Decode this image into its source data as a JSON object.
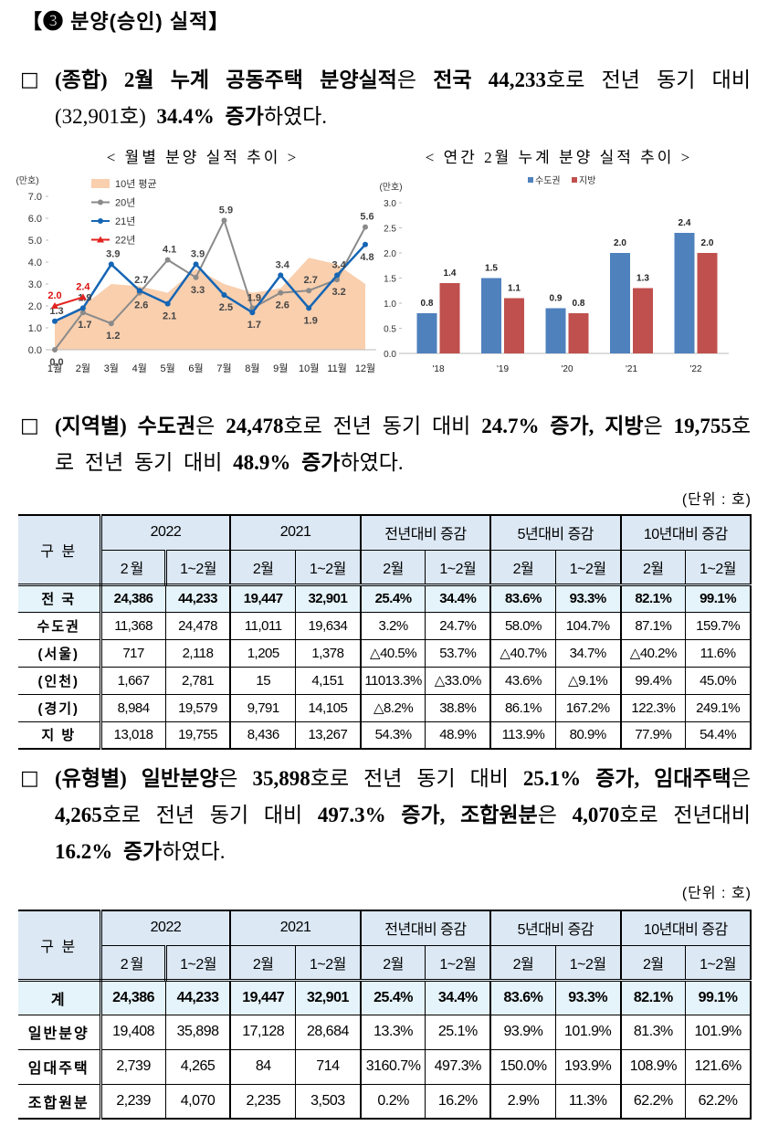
{
  "heading": "【❸ 분양(승인) 실적】",
  "paragraphs": [
    {
      "marker": "□",
      "segments": [
        {
          "t": "(종합) 2월 누계 공동주택 분양실적",
          "b": true
        },
        {
          "t": "은 ",
          "b": false
        },
        {
          "t": "전국 44,233",
          "b": true
        },
        {
          "t": "호로 전년 동기 대비 (32,901호) ",
          "b": false
        },
        {
          "t": "34.4% 증가",
          "b": true
        },
        {
          "t": "하였다.",
          "b": false
        }
      ]
    },
    {
      "marker": "□",
      "segments": [
        {
          "t": "(지역별) 수도권",
          "b": true
        },
        {
          "t": "은 ",
          "b": false
        },
        {
          "t": "24,478",
          "b": true
        },
        {
          "t": "호로 전년 동기 대비 ",
          "b": false
        },
        {
          "t": "24.7% 증가, 지방",
          "b": true
        },
        {
          "t": "은 ",
          "b": false
        },
        {
          "t": "19,755",
          "b": true
        },
        {
          "t": "호로 전년 동기 대비 ",
          "b": false
        },
        {
          "t": "48.9% 증가",
          "b": true
        },
        {
          "t": "하였다.",
          "b": false
        }
      ]
    },
    {
      "marker": "□",
      "segments": [
        {
          "t": "(유형별) 일반분양",
          "b": true
        },
        {
          "t": "은 ",
          "b": false
        },
        {
          "t": "35,898",
          "b": true
        },
        {
          "t": "호로 전년 동기 대비 ",
          "b": false
        },
        {
          "t": "25.1% 증가, 임대주택",
          "b": true
        },
        {
          "t": "은 ",
          "b": false
        },
        {
          "t": "4,265",
          "b": true
        },
        {
          "t": "호로 전년 동기 대비 ",
          "b": false
        },
        {
          "t": "497.3% 증가, 조합원분",
          "b": true
        },
        {
          "t": "은 ",
          "b": false
        },
        {
          "t": "4,070",
          "b": true
        },
        {
          "t": "호로 전년대비 ",
          "b": false
        },
        {
          "t": "16.2% 증가",
          "b": true
        },
        {
          "t": "하였다.",
          "b": false
        }
      ]
    }
  ],
  "chart_data": [
    {
      "type": "line",
      "title": "< 월별 분양 실적 추이 >",
      "y_unit": "(만호)",
      "categories": [
        "1월",
        "2월",
        "3월",
        "4월",
        "5월",
        "6월",
        "7월",
        "8월",
        "9월",
        "10월",
        "11월",
        "12월"
      ],
      "ylim": [
        0,
        7
      ],
      "yticks": [
        {
          "value": 0,
          "label": "0.0"
        },
        {
          "value": 1,
          "label": "1.0"
        },
        {
          "value": 2,
          "label": "2.0"
        },
        {
          "value": 3,
          "label": "3.0"
        },
        {
          "value": 4,
          "label": "4.0"
        },
        {
          "value": 5,
          "label": "5.0"
        },
        {
          "value": 6,
          "label": "6.0"
        },
        {
          "value": 7,
          "label": "7.0"
        }
      ],
      "series": [
        {
          "name": "10년 평균",
          "color": "#f9cfae",
          "area": true,
          "values": [
            1.3,
            2.0,
            3.0,
            2.9,
            2.6,
            3.7,
            3.0,
            2.6,
            2.8,
            4.2,
            3.9,
            3.0
          ]
        },
        {
          "name": "20년",
          "color": "#8a8a8a",
          "marker": "circle",
          "values": [
            0.0,
            1.7,
            1.2,
            2.6,
            4.1,
            3.3,
            5.9,
            1.9,
            2.6,
            2.7,
            3.2,
            5.6
          ],
          "value_labels": [
            "0.0",
            "1.7",
            "1.2",
            "2.6",
            "4.1",
            "3.3",
            "5.9",
            "1.9",
            "2.6",
            "2.7",
            "3.2",
            "5.6"
          ]
        },
        {
          "name": "21년",
          "color": "#1565b4",
          "marker": "circle",
          "values": [
            1.3,
            1.9,
            3.9,
            2.7,
            2.1,
            3.9,
            2.5,
            1.7,
            3.4,
            1.9,
            3.4,
            4.8
          ],
          "value_labels": [
            "1.3",
            "1.9",
            "3.9",
            "2.7",
            "2.1",
            "3.9",
            "2.5",
            "1.7",
            "3.4",
            "1.9",
            "3.4",
            "4.8"
          ]
        },
        {
          "name": "22년",
          "color": "#e2231f",
          "marker": "triangle",
          "values": [
            2.0,
            2.4,
            null,
            null,
            null,
            null,
            null,
            null,
            null,
            null,
            null,
            null
          ],
          "value_labels": [
            "2.0",
            "2.4",
            null,
            null,
            null,
            null,
            null,
            null,
            null,
            null,
            null,
            null
          ]
        }
      ]
    },
    {
      "type": "bar",
      "title": "< 연간 2월 누계 분양 실적 추이 >",
      "y_unit": "(만호)",
      "categories": [
        "'18",
        "'19",
        "'20",
        "'21",
        "'22"
      ],
      "ylim": [
        0,
        3
      ],
      "yticks": [
        {
          "value": 0,
          "label": "0.0"
        },
        {
          "value": 0.5,
          "label": "0.5"
        },
        {
          "value": 1,
          "label": "1.0"
        },
        {
          "value": 1.5,
          "label": "1.5"
        },
        {
          "value": 2,
          "label": "2.0"
        },
        {
          "value": 2.5,
          "label": "2.5"
        },
        {
          "value": 3,
          "label": "3.0"
        }
      ],
      "series": [
        {
          "name": "수도권",
          "color": "#4f81bd",
          "values": [
            0.8,
            1.5,
            0.9,
            2.0,
            2.4
          ],
          "value_labels": [
            "0.8",
            "1.5",
            "0.9",
            "2.0",
            "2.4"
          ]
        },
        {
          "name": "지방",
          "color": "#c0504d",
          "values": [
            1.4,
            1.1,
            0.8,
            1.3,
            2.0
          ],
          "value_labels": [
            "1.4",
            "1.1",
            "0.8",
            "1.3",
            "2.0"
          ]
        }
      ]
    }
  ],
  "unit_notes": [
    "(단위 : 호)",
    "(단위 : 호)"
  ],
  "tables": [
    {
      "header": {
        "corner": "구 분",
        "groups": [
          "2022",
          "2021",
          "전년대비 증감",
          "5년대비 증감",
          "10년대비 증감"
        ],
        "sub": [
          "2월",
          "1~2월",
          "2월",
          "1~2월",
          "2월",
          "1~2월",
          "2월",
          "1~2월",
          "2월",
          "1~2월"
        ]
      },
      "rows": [
        {
          "label": "전 국",
          "cells": [
            "24,386",
            "44,233",
            "19,447",
            "32,901",
            "25.4%",
            "34.4%",
            "83.6%",
            "93.3%",
            "82.1%",
            "99.1%"
          ]
        },
        {
          "label": "수도권",
          "cells": [
            "11,368",
            "24,478",
            "11,011",
            "19,634",
            "3.2%",
            "24.7%",
            "58.0%",
            "104.7%",
            "87.1%",
            "159.7%"
          ]
        },
        {
          "label": "(서울)",
          "cells": [
            "717",
            "2,118",
            "1,205",
            "1,378",
            "△40.5%",
            "53.7%",
            "△40.7%",
            "34.7%",
            "△40.2%",
            "11.6%"
          ]
        },
        {
          "label": "(인천)",
          "cells": [
            "1,667",
            "2,781",
            "15",
            "4,151",
            "11013.3%",
            "△33.0%",
            "43.6%",
            "△9.1%",
            "99.4%",
            "45.0%"
          ]
        },
        {
          "label": "(경기)",
          "cells": [
            "8,984",
            "19,579",
            "9,791",
            "14,105",
            "△8.2%",
            "38.8%",
            "86.1%",
            "167.2%",
            "122.3%",
            "249.1%"
          ]
        },
        {
          "label": "지 방",
          "cells": [
            "13,018",
            "19,755",
            "8,436",
            "13,267",
            "54.3%",
            "48.9%",
            "113.9%",
            "80.9%",
            "77.9%",
            "54.4%"
          ]
        }
      ]
    },
    {
      "header": {
        "corner": "구 분",
        "groups": [
          "2022",
          "2021",
          "전년대비 증감",
          "5년대비 증감",
          "10년대비 증감"
        ],
        "sub": [
          "2월",
          "1~2월",
          "2월",
          "1~2월",
          "2월",
          "1~2월",
          "2월",
          "1~2월",
          "2월",
          "1~2월"
        ]
      },
      "rows": [
        {
          "label": "계",
          "cells": [
            "24,386",
            "44,233",
            "19,447",
            "32,901",
            "25.4%",
            "34.4%",
            "83.6%",
            "93.3%",
            "82.1%",
            "99.1%"
          ]
        },
        {
          "label": "일반분양",
          "cells": [
            "19,408",
            "35,898",
            "17,128",
            "28,684",
            "13.3%",
            "25.1%",
            "93.9%",
            "101.9%",
            "81.3%",
            "101.9%"
          ]
        },
        {
          "label": "임대주택",
          "cells": [
            "2,739",
            "4,265",
            "84",
            "714",
            "3160.7%",
            "497.3%",
            "150.0%",
            "193.9%",
            "108.9%",
            "121.6%"
          ]
        },
        {
          "label": "조합원분",
          "cells": [
            "2,239",
            "4,070",
            "2,235",
            "3,503",
            "0.2%",
            "16.2%",
            "2.9%",
            "11.3%",
            "62.2%",
            "62.2%"
          ]
        }
      ]
    }
  ]
}
